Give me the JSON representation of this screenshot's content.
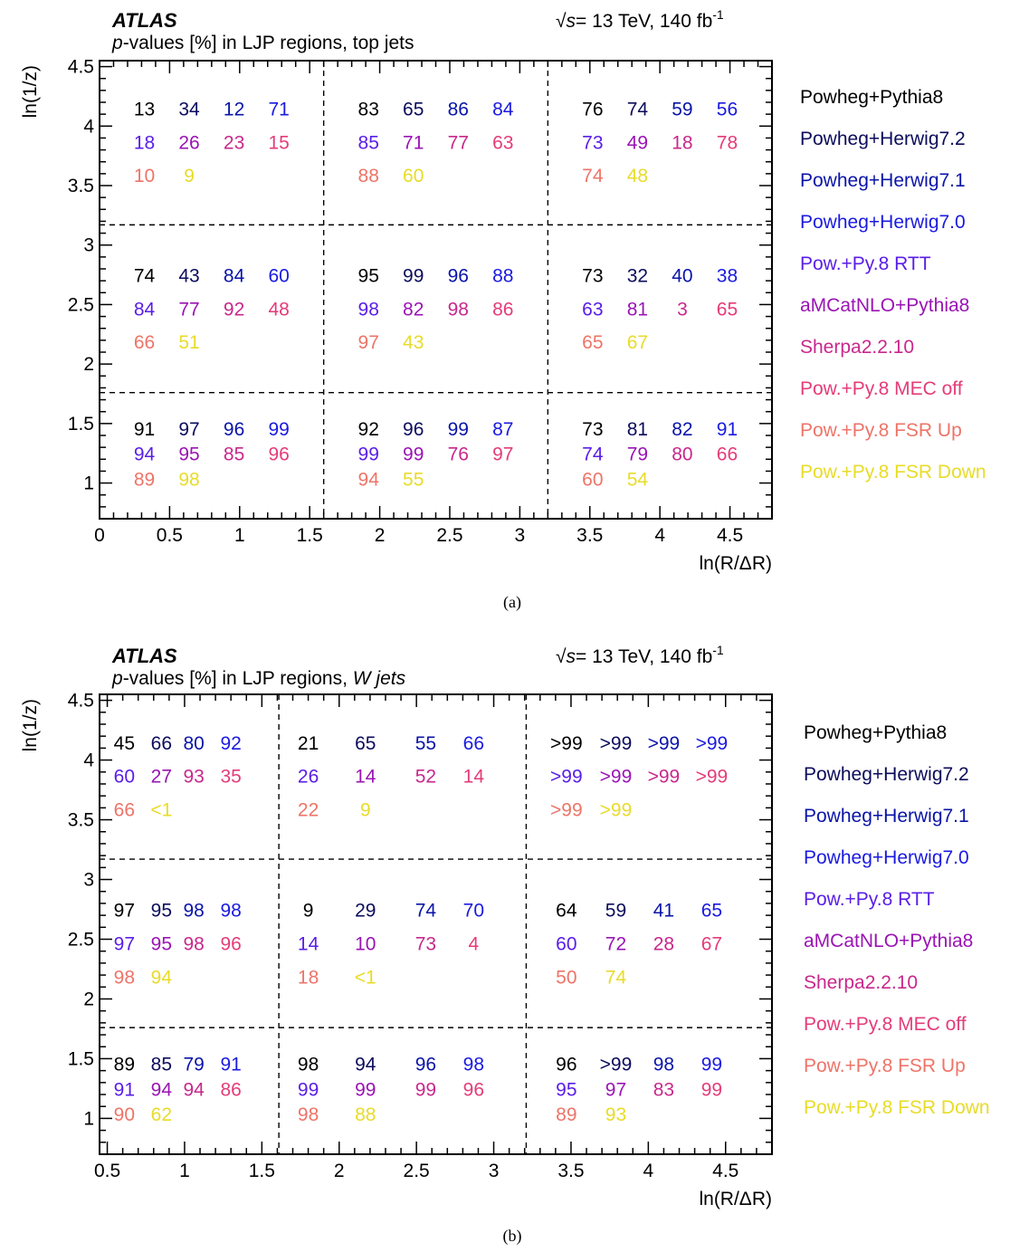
{
  "chart_data": [
    {
      "type": "table",
      "caption": "(a)",
      "experiment": "ATLAS",
      "energy_label": "= 13 TeV, 140 fb",
      "energy_sup": "-1",
      "energy_sqrt_symbol": "√s",
      "subtitle_prefix": "p",
      "subtitle_mid": "-values [%] in LJP regions, top jets",
      "subtitle_tail": "",
      "xlabel": "ln(R/ΔR)",
      "ylabel": "ln(1/z)",
      "xlim": [
        0,
        4.8
      ],
      "ylim": [
        0.7,
        4.55
      ],
      "x_ticks": [
        0,
        0.5,
        1,
        1.5,
        2,
        2.5,
        3,
        3.5,
        4,
        4.5
      ],
      "x_tick_labels": [
        "0",
        "0.5",
        "1",
        "1.5",
        "2",
        "2.5",
        "3",
        "3.5",
        "4",
        "4.5"
      ],
      "y_ticks": [
        1,
        1.5,
        2,
        2.5,
        3,
        3.5,
        4,
        4.5
      ],
      "y_tick_labels": [
        "1",
        "1.5",
        "2",
        "2.5",
        "3",
        "3.5",
        "4",
        "4.5"
      ],
      "x_boundaries": [
        1.6,
        3.2
      ],
      "y_boundaries": [
        1.76,
        3.17
      ],
      "x_column_lines": [
        0.32,
        0.64,
        0.96,
        1.28,
        1.92,
        2.24,
        2.56,
        2.88,
        3.52,
        3.84,
        4.16,
        4.48
      ],
      "y_region_rows": [
        [
          4.15,
          3.87,
          3.59
        ],
        [
          2.75,
          2.47,
          2.19
        ],
        [
          1.46,
          1.25,
          1.04
        ]
      ],
      "regions": [
        {
          "x_region": 1,
          "y_region": 1,
          "values": [
            "13",
            "34",
            "12",
            "71",
            "18",
            "26",
            "23",
            "15",
            "10",
            "9"
          ]
        },
        {
          "x_region": 2,
          "y_region": 1,
          "values": [
            "83",
            "65",
            "86",
            "84",
            "85",
            "71",
            "77",
            "63",
            "88",
            "60"
          ]
        },
        {
          "x_region": 3,
          "y_region": 1,
          "values": [
            "76",
            "74",
            "59",
            "56",
            "73",
            "49",
            "18",
            "78",
            "74",
            "48"
          ]
        },
        {
          "x_region": 1,
          "y_region": 2,
          "values": [
            "74",
            "43",
            "84",
            "60",
            "84",
            "77",
            "92",
            "48",
            "66",
            "51"
          ]
        },
        {
          "x_region": 2,
          "y_region": 2,
          "values": [
            "95",
            "99",
            "96",
            "88",
            "98",
            "82",
            "98",
            "86",
            "97",
            "43"
          ]
        },
        {
          "x_region": 3,
          "y_region": 2,
          "values": [
            "73",
            "32",
            "40",
            "38",
            "63",
            "81",
            "3",
            "65",
            "65",
            "67"
          ]
        },
        {
          "x_region": 1,
          "y_region": 3,
          "values": [
            "91",
            "97",
            "96",
            "99",
            "94",
            "95",
            "85",
            "96",
            "89",
            "98"
          ]
        },
        {
          "x_region": 2,
          "y_region": 3,
          "values": [
            "92",
            "96",
            "99",
            "87",
            "99",
            "99",
            "76",
            "97",
            "94",
            "55"
          ]
        },
        {
          "x_region": 3,
          "y_region": 3,
          "values": [
            "73",
            "81",
            "82",
            "91",
            "74",
            "79",
            "80",
            "66",
            "60",
            "54"
          ]
        }
      ]
    },
    {
      "type": "table",
      "caption": "(b)",
      "experiment": "ATLAS",
      "energy_label": "= 13 TeV, 140 fb",
      "energy_sup": "-1",
      "energy_sqrt_symbol": "√s",
      "subtitle_prefix": "p",
      "subtitle_mid": "-values [%] in LJP regions, ",
      "subtitle_tail": "W jets",
      "xlabel": "ln(R/ΔR)",
      "ylabel": "ln(1/z)",
      "xlim": [
        0.45,
        4.8
      ],
      "ylim": [
        0.7,
        4.55
      ],
      "x_ticks": [
        0.5,
        1,
        1.5,
        2,
        2.5,
        3,
        3.5,
        4,
        4.5
      ],
      "x_tick_labels": [
        "0.5",
        "1",
        "1.5",
        "2",
        "2.5",
        "3",
        "3.5",
        "4",
        "4.5"
      ],
      "y_ticks": [
        1,
        1.5,
        2,
        2.5,
        3,
        3.5,
        4,
        4.5
      ],
      "y_tick_labels": [
        "1",
        "1.5",
        "2",
        "2.5",
        "3",
        "3.5",
        "4",
        "4.5"
      ],
      "x_boundaries": [
        1.61,
        3.21
      ],
      "y_boundaries": [
        1.76,
        3.17
      ],
      "x_column_lines": [
        0.61,
        0.85,
        1.06,
        1.3,
        1.8,
        2.17,
        2.56,
        2.87,
        3.47,
        3.79,
        4.1,
        4.41
      ],
      "y_region_rows": [
        [
          4.15,
          3.87,
          3.59
        ],
        [
          2.75,
          2.47,
          2.19
        ],
        [
          1.46,
          1.25,
          1.04
        ]
      ],
      "regions": [
        {
          "x_region": 1,
          "y_region": 1,
          "values": [
            "45",
            "66",
            "80",
            "92",
            "60",
            "27",
            "93",
            "35",
            "66",
            "<1"
          ]
        },
        {
          "x_region": 2,
          "y_region": 1,
          "values": [
            "21",
            "65",
            "55",
            "66",
            "26",
            "14",
            "52",
            "14",
            "22",
            "9"
          ]
        },
        {
          "x_region": 3,
          "y_region": 1,
          "values": [
            ">99",
            ">99",
            ">99",
            ">99",
            ">99",
            ">99",
            ">99",
            ">99",
            ">99",
            ">99"
          ]
        },
        {
          "x_region": 1,
          "y_region": 2,
          "values": [
            "97",
            "95",
            "98",
            "98",
            "97",
            "95",
            "98",
            "96",
            "98",
            "94"
          ]
        },
        {
          "x_region": 2,
          "y_region": 2,
          "values": [
            "9",
            "29",
            "74",
            "70",
            "14",
            "10",
            "73",
            "4",
            "18",
            "<1"
          ]
        },
        {
          "x_region": 3,
          "y_region": 2,
          "values": [
            "64",
            "59",
            "41",
            "65",
            "60",
            "72",
            "28",
            "67",
            "50",
            "74"
          ]
        },
        {
          "x_region": 1,
          "y_region": 3,
          "values": [
            "89",
            "85",
            "79",
            "91",
            "91",
            "94",
            "94",
            "86",
            "90",
            "62"
          ]
        },
        {
          "x_region": 2,
          "y_region": 3,
          "values": [
            "98",
            "94",
            "96",
            "98",
            "99",
            "99",
            "99",
            "96",
            "98",
            "88"
          ]
        },
        {
          "x_region": 3,
          "y_region": 3,
          "values": [
            "96",
            ">99",
            "98",
            "99",
            "95",
            "97",
            "83",
            "99",
            "89",
            "93"
          ]
        }
      ]
    }
  ],
  "legend": [
    {
      "name": "Powheg+Pythia8",
      "color": "#000000"
    },
    {
      "name": "Powheg+Herwig7.2",
      "color": "#0c0c5c"
    },
    {
      "name": "Powheg+Herwig7.1",
      "color": "#0a14a8"
    },
    {
      "name": "Powheg+Herwig7.0",
      "color": "#1a1ae0"
    },
    {
      "name": "Pow.+Py.8 RTT",
      "color": "#5a1ee8"
    },
    {
      "name": "aMCatNLO+Pythia8",
      "color": "#9a14b4"
    },
    {
      "name": "Sherpa2.2.10",
      "color": "#c8288c"
    },
    {
      "name": "Pow.+Py.8 MEC off",
      "color": "#e43c78"
    },
    {
      "name": "Pow.+Py.8 FSR Up",
      "color": "#ee7468"
    },
    {
      "name": "Pow.+Py.8 FSR Down",
      "color": "#e8dc28"
    }
  ]
}
